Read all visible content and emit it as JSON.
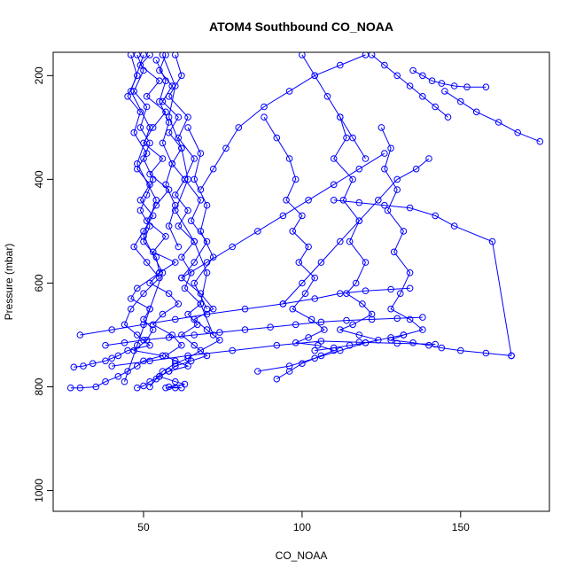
{
  "chart_data": {
    "type": "line",
    "title": "ATOM4 Southbound CO_NOAA",
    "xlabel": "CO_NOAA",
    "ylabel": "Pressure (mbar)",
    "xlim": [
      21.5,
      178
    ],
    "ylim": [
      1040,
      155
    ],
    "y_reversed": true,
    "x_ticks": [
      50,
      100,
      150
    ],
    "x_tick_labels": [
      "50",
      "100",
      "150"
    ],
    "y_ticks": [
      200,
      400,
      600,
      800,
      1000
    ],
    "y_tick_labels": [
      "200",
      "400",
      "600",
      "800",
      "1000"
    ],
    "grid": false,
    "marker": "open-circle",
    "series_color": "#0000ff",
    "series": [
      {
        "x": [
          48,
          50,
          47,
          51,
          49,
          52,
          50,
          53,
          51,
          49,
          52,
          50,
          54,
          55,
          48,
          46,
          52,
          50,
          53,
          51,
          47,
          56,
          50,
          48,
          45,
          42,
          38,
          35,
          30,
          27
        ],
        "y": [
          160,
          190,
          230,
          260,
          300,
          330,
          360,
          400,
          430,
          460,
          490,
          520,
          550,
          580,
          610,
          630,
          650,
          670,
          690,
          710,
          730,
          740,
          750,
          760,
          770,
          780,
          790,
          800,
          802,
          802
        ]
      },
      {
        "x": [
          52,
          49,
          55,
          51,
          57,
          53,
          50,
          56,
          52,
          58,
          54,
          51,
          57,
          53,
          60,
          55,
          52,
          58,
          61,
          56,
          53,
          59,
          62,
          57,
          60,
          64,
          58,
          55,
          60,
          63,
          58,
          62,
          60,
          57
        ],
        "y": [
          160,
          180,
          210,
          240,
          270,
          300,
          330,
          360,
          390,
          420,
          450,
          480,
          510,
          540,
          560,
          580,
          600,
          620,
          640,
          660,
          680,
          700,
          720,
          740,
          750,
          760,
          770,
          780,
          790,
          795,
          800,
          802,
          802,
          802
        ]
      },
      {
        "x": [
          57,
          55,
          59,
          56,
          61,
          58,
          62,
          59,
          63,
          60,
          64,
          61,
          66,
          62,
          65,
          63,
          68,
          64,
          67,
          62,
          66,
          70,
          65,
          60,
          58,
          55,
          52,
          50,
          48
        ],
        "y": [
          160,
          190,
          220,
          250,
          280,
          310,
          340,
          370,
          400,
          430,
          460,
          490,
          520,
          550,
          580,
          610,
          640,
          660,
          680,
          700,
          720,
          740,
          750,
          760,
          770,
          780,
          790,
          798,
          802
        ]
      },
      {
        "x": [
          46,
          48,
          45,
          49,
          47,
          51,
          48,
          52,
          49,
          53,
          50,
          47,
          51,
          55,
          50,
          46,
          44,
          48,
          52,
          45,
          42,
          40,
          38,
          34,
          31,
          28
        ],
        "y": [
          160,
          200,
          240,
          270,
          310,
          350,
          380,
          410,
          440,
          470,
          500,
          530,
          560,
          590,
          620,
          650,
          680,
          700,
          720,
          730,
          740,
          745,
          750,
          755,
          760,
          762
        ]
      },
      {
        "x": [
          60,
          62,
          58,
          64,
          61,
          66,
          63,
          68,
          65,
          70,
          66,
          62,
          68,
          72,
          66,
          70,
          74,
          68,
          64,
          60,
          56,
          54,
          52
        ],
        "y": [
          160,
          200,
          240,
          280,
          320,
          360,
          400,
          440,
          480,
          520,
          560,
          590,
          620,
          650,
          670,
          690,
          710,
          730,
          745,
          755,
          770,
          785,
          800
        ]
      },
      {
        "x": [
          88,
          92,
          96,
          98,
          95,
          100,
          97,
          102,
          99,
          104,
          101,
          97,
          103,
          107,
          102,
          98,
          105,
          110,
          106,
          100,
          96,
          92
        ],
        "y": [
          280,
          320,
          360,
          400,
          440,
          470,
          500,
          530,
          560,
          590,
          620,
          650,
          670,
          690,
          705,
          715,
          720,
          730,
          740,
          755,
          770,
          785
        ]
      },
      {
        "x": [
          112,
          114,
          110,
          116,
          113,
          118,
          115,
          120,
          117,
          114,
          119,
          122,
          116,
          112,
          118,
          124,
          120,
          115,
          110,
          104
        ],
        "y": [
          280,
          320,
          360,
          400,
          440,
          480,
          520,
          560,
          600,
          620,
          640,
          660,
          680,
          690,
          700,
          710,
          715,
          720,
          725,
          730
        ]
      },
      {
        "x": [
          125,
          128,
          126,
          130,
          127,
          132,
          129,
          134,
          131,
          128,
          134,
          138,
          132,
          128,
          135,
          140,
          144,
          150,
          158,
          166
        ],
        "y": [
          300,
          340,
          380,
          420,
          460,
          500,
          540,
          580,
          620,
          650,
          670,
          690,
          700,
          710,
          715,
          720,
          725,
          730,
          735,
          740
        ]
      },
      {
        "x": [
          135,
          138,
          141,
          144,
          148,
          152,
          158
        ],
        "y": [
          190,
          200,
          210,
          215,
          220,
          222,
          222
        ]
      },
      {
        "x": [
          145,
          150,
          155,
          162,
          168,
          175
        ],
        "y": [
          230,
          250,
          270,
          290,
          310,
          327
        ]
      },
      {
        "x": [
          110,
          118,
          126,
          134,
          142,
          148,
          160,
          166
        ],
        "y": [
          440,
          445,
          450,
          455,
          470,
          490,
          520,
          740
        ]
      },
      {
        "x": [
          38,
          44,
          50,
          58,
          66,
          74,
          82,
          90,
          98,
          106,
          114,
          122,
          130,
          138
        ],
        "y": [
          720,
          715,
          710,
          705,
          700,
          695,
          690,
          685,
          680,
          675,
          672,
          670,
          668,
          666
        ]
      },
      {
        "x": [
          30,
          40,
          50,
          60,
          70,
          82,
          94,
          104,
          112,
          120,
          128,
          134
        ],
        "y": [
          700,
          690,
          680,
          670,
          660,
          650,
          640,
          630,
          620,
          615,
          612,
          610
        ]
      },
      {
        "x": [
          40,
          52,
          64,
          78,
          92,
          106,
          118,
          130,
          142
        ],
        "y": [
          760,
          750,
          740,
          730,
          720,
          712,
          714,
          716,
          718
        ]
      },
      {
        "x": [
          62,
          70,
          78,
          86,
          94,
          102,
          110,
          118,
          126
        ],
        "y": [
          590,
          560,
          530,
          500,
          470,
          440,
          410,
          380,
          350
        ]
      },
      {
        "x": [
          68,
          72,
          76,
          80,
          88,
          96,
          104,
          112,
          120
        ],
        "y": [
          420,
          380,
          340,
          300,
          260,
          230,
          200,
          180,
          160
        ]
      },
      {
        "x": [
          94,
          100,
          106,
          112,
          118,
          124,
          130,
          136,
          140
        ],
        "y": [
          640,
          600,
          560,
          520,
          480,
          440,
          400,
          380,
          360
        ]
      },
      {
        "x": [
          86,
          96,
          104,
          112,
          120,
          128,
          132
        ],
        "y": [
          770,
          760,
          745,
          730,
          715,
          705,
          700
        ]
      },
      {
        "x": [
          56,
          60,
          58,
          62,
          64,
          60,
          66,
          70,
          68,
          72
        ],
        "y": [
          160,
          220,
          280,
          340,
          400,
          460,
          520,
          580,
          640,
          700
        ]
      },
      {
        "x": [
          50,
          46,
          52,
          48,
          54,
          50,
          56,
          52,
          48,
          44
        ],
        "y": [
          160,
          230,
          300,
          370,
          440,
          510,
          580,
          650,
          720,
          790
        ]
      },
      {
        "x": [
          122,
          126,
          130,
          134,
          138,
          142,
          146
        ],
        "y": [
          160,
          180,
          200,
          220,
          240,
          260,
          280
        ]
      },
      {
        "x": [
          100,
          104,
          108,
          112,
          116,
          120
        ],
        "y": [
          160,
          200,
          240,
          280,
          320,
          360
        ]
      },
      {
        "x": [
          64,
          68,
          66,
          70,
          68,
          72,
          66,
          70
        ],
        "y": [
          300,
          350,
          400,
          450,
          500,
          550,
          600,
          650
        ]
      },
      {
        "x": [
          54,
          57,
          55,
          58,
          56,
          59,
          57,
          60,
          58,
          61
        ],
        "y": [
          170,
          210,
          250,
          290,
          330,
          370,
          410,
          450,
          490,
          530
        ]
      }
    ]
  }
}
